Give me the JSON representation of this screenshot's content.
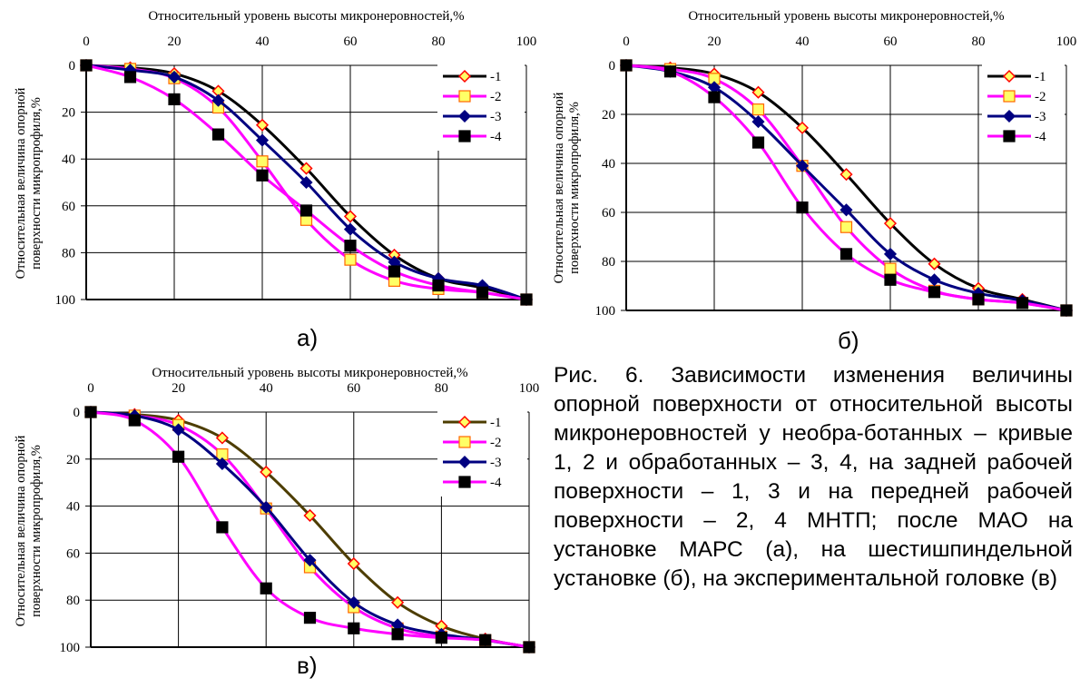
{
  "chart_data": [
    {
      "type": "line",
      "panel": "а)",
      "xlabel": "Относительный уровень высоты микронеровностей,%",
      "ylabel": "Относительная величина опорной поверхности микропрофиля,%",
      "xlim": [
        0,
        100
      ],
      "ylim": [
        0,
        100
      ],
      "y_inverted": true,
      "x_axis_position": "top",
      "xticks": [
        "0",
        "20",
        "40",
        "60",
        "80",
        "100"
      ],
      "yticks": [
        "0",
        "20",
        "40",
        "60",
        "80",
        "100"
      ],
      "grid": true,
      "legend_position": "top-right",
      "series": [
        {
          "name": "-1",
          "color": "#000000",
          "marker": "diamond",
          "marker_fill": "#ffff66",
          "marker_edge": "#ff0000",
          "x": [
            0,
            10,
            20,
            30,
            40,
            50,
            60,
            70,
            80,
            90,
            100
          ],
          "y": [
            0,
            1,
            3.5,
            11,
            25.5,
            44,
            64.5,
            81,
            91,
            95,
            100
          ]
        },
        {
          "name": "-2",
          "color": "#ff00ff",
          "marker": "square",
          "marker_fill": "#ffff66",
          "marker_edge": "#ff6600",
          "x": [
            0,
            10,
            20,
            30,
            40,
            50,
            60,
            70,
            80,
            90,
            100
          ],
          "y": [
            0,
            1.5,
            5.5,
            18,
            41,
            66,
            83,
            92,
            95.5,
            97,
            100
          ]
        },
        {
          "name": "-3",
          "color": "#000080",
          "marker": "diamond",
          "marker_fill": "#000080",
          "marker_edge": "#000080",
          "x": [
            0,
            10,
            20,
            30,
            40,
            50,
            60,
            70,
            80,
            90,
            100
          ],
          "y": [
            0,
            2,
            5,
            15,
            32,
            50,
            70,
            84,
            91,
            94,
            100
          ]
        },
        {
          "name": "-4",
          "color": "#ff00ff",
          "marker": "square",
          "marker_fill": "#000000",
          "marker_edge": "#000000",
          "x": [
            0,
            10,
            20,
            30,
            40,
            50,
            60,
            70,
            80,
            90,
            100
          ],
          "y": [
            0,
            5,
            14.5,
            29.5,
            47,
            62,
            77,
            88,
            94,
            97,
            100
          ]
        }
      ]
    },
    {
      "type": "line",
      "panel": "б)",
      "xlabel": "Относительный уровень высоты микронеровностей,%",
      "ylabel": "Относительная величина опорной поверхности микропрофиля,%",
      "xlim": [
        0,
        100
      ],
      "ylim": [
        0,
        100
      ],
      "y_inverted": true,
      "x_axis_position": "top",
      "xticks": [
        "0",
        "20",
        "40",
        "60",
        "80",
        "100"
      ],
      "yticks": [
        "0",
        "20",
        "40",
        "60",
        "80",
        "100"
      ],
      "grid": true,
      "legend_position": "top-right",
      "series": [
        {
          "name": "-1",
          "color": "#000000",
          "marker": "diamond",
          "marker_fill": "#ffff66",
          "marker_edge": "#ff0000",
          "x": [
            0,
            10,
            20,
            30,
            40,
            50,
            60,
            70,
            80,
            90,
            100
          ],
          "y": [
            0,
            1,
            3.5,
            11,
            25.5,
            44.5,
            64.5,
            81,
            91,
            95.5,
            100
          ]
        },
        {
          "name": "-2",
          "color": "#ff00ff",
          "marker": "square",
          "marker_fill": "#ffff66",
          "marker_edge": "#ff6600",
          "x": [
            0,
            10,
            20,
            30,
            40,
            50,
            60,
            70,
            80,
            90,
            100
          ],
          "y": [
            0,
            1.5,
            5.5,
            18,
            41,
            66,
            83,
            92,
            95.5,
            97,
            100
          ]
        },
        {
          "name": "-3",
          "color": "#000080",
          "marker": "diamond",
          "marker_fill": "#000080",
          "marker_edge": "#000080",
          "x": [
            0,
            10,
            20,
            30,
            40,
            50,
            60,
            70,
            80,
            90,
            100
          ],
          "y": [
            0,
            2.5,
            9,
            23,
            41,
            59,
            77,
            87.5,
            93,
            96,
            100
          ]
        },
        {
          "name": "-4",
          "color": "#ff00ff",
          "marker": "square",
          "marker_fill": "#000000",
          "marker_edge": "#000000",
          "x": [
            0,
            10,
            20,
            30,
            40,
            50,
            60,
            70,
            80,
            90,
            100
          ],
          "y": [
            0,
            2.5,
            13,
            31.5,
            58,
            77,
            87.5,
            92.5,
            95.5,
            97,
            100
          ]
        }
      ]
    },
    {
      "type": "line",
      "panel": "в)",
      "xlabel": "Относительный уровень высоты микронеровностей,%",
      "ylabel": "Относительная величина опорной поверхности микропрофиля,%",
      "xlim": [
        0,
        100
      ],
      "ylim": [
        0,
        100
      ],
      "y_inverted": true,
      "x_axis_position": "top",
      "xticks": [
        "0",
        "20",
        "40",
        "60",
        "80",
        "100"
      ],
      "yticks": [
        "0",
        "20",
        "40",
        "60",
        "80",
        "100"
      ],
      "grid": true,
      "legend_position": "top-right",
      "series": [
        {
          "name": "-1",
          "color": "#4d3d00",
          "marker": "diamond",
          "marker_fill": "#ffff66",
          "marker_edge": "#ff0000",
          "x": [
            0,
            10,
            20,
            30,
            40,
            50,
            60,
            70,
            80,
            90,
            100
          ],
          "y": [
            0,
            1,
            3.5,
            11,
            25.5,
            44,
            64.5,
            81,
            91,
            96.5,
            100
          ]
        },
        {
          "name": "-2",
          "color": "#ff00ff",
          "marker": "square",
          "marker_fill": "#ffff66",
          "marker_edge": "#ff6600",
          "x": [
            0,
            10,
            20,
            30,
            40,
            50,
            60,
            70,
            80,
            90,
            100
          ],
          "y": [
            0,
            1.5,
            5.5,
            18,
            41,
            66,
            83,
            92,
            95.5,
            97,
            100
          ]
        },
        {
          "name": "-3",
          "color": "#000080",
          "marker": "diamond",
          "marker_fill": "#000080",
          "marker_edge": "#000080",
          "x": [
            0,
            10,
            20,
            30,
            40,
            50,
            60,
            70,
            80,
            90,
            100
          ],
          "y": [
            0,
            1.5,
            7.5,
            22,
            40.5,
            63,
            81,
            90.5,
            94.5,
            97,
            100
          ]
        },
        {
          "name": "-4",
          "color": "#ff00ff",
          "marker": "square",
          "marker_fill": "#000000",
          "marker_edge": "#000000",
          "x": [
            0,
            10,
            20,
            30,
            40,
            50,
            60,
            70,
            80,
            90,
            100
          ],
          "y": [
            0,
            3.5,
            19,
            49,
            75,
            87.5,
            92,
            94.5,
            96,
            97,
            100
          ]
        }
      ]
    }
  ],
  "caption": "Рис. 6. Зависимости изменения величины опорной поверхности от относительной высоты микронеровностей у необра-ботанных – кривые 1, 2 и обработанных – 3, 4, на задней рабочей поверхности – 1, 3 и на передней рабочей поверхности – 2, 4 МНТП; после МАО на установке МАРС (а), на шестишпиндельной установке (б), на экспериментальной головке (в)"
}
